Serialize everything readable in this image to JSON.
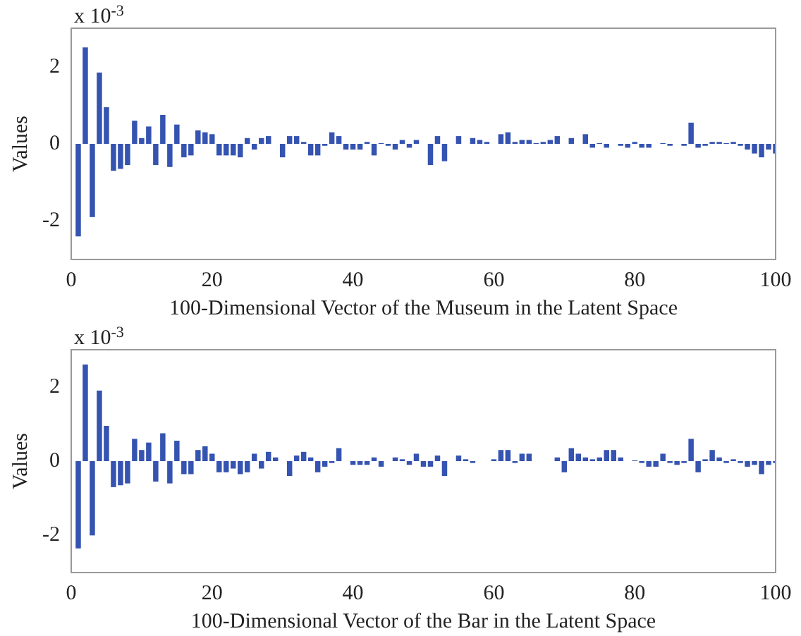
{
  "chart_data": [
    {
      "type": "bar",
      "xlabel": "100-Dimensional Vector of the Museum in the Latent Space",
      "ylabel": "Values",
      "annotations": [
        "x 10$^{-3}$"
      ],
      "color": "#3553b0",
      "xlim": [
        0,
        100
      ],
      "xticks": [
        0,
        20,
        40,
        60,
        80,
        100
      ],
      "ylim": [
        -3,
        3
      ],
      "yticks": [
        -2,
        0,
        2
      ],
      "x": [
        1,
        2,
        3,
        4,
        5,
        6,
        7,
        8,
        9,
        10,
        11,
        12,
        13,
        14,
        15,
        16,
        17,
        18,
        19,
        20,
        21,
        22,
        23,
        24,
        25,
        26,
        27,
        28,
        29,
        30,
        31,
        32,
        33,
        34,
        35,
        36,
        37,
        38,
        39,
        40,
        41,
        42,
        43,
        44,
        45,
        46,
        47,
        48,
        49,
        50,
        51,
        52,
        53,
        54,
        55,
        56,
        57,
        58,
        59,
        60,
        61,
        62,
        63,
        64,
        65,
        66,
        67,
        68,
        69,
        70,
        71,
        72,
        73,
        74,
        75,
        76,
        77,
        78,
        79,
        80,
        81,
        82,
        83,
        84,
        85,
        86,
        87,
        88,
        89,
        90,
        91,
        92,
        93,
        94,
        95,
        96,
        97,
        98,
        99,
        100
      ],
      "values": [
        -2.4,
        2.5,
        -1.9,
        1.85,
        0.95,
        -0.7,
        -0.65,
        -0.55,
        0.6,
        0.15,
        0.45,
        -0.55,
        0.75,
        -0.6,
        0.5,
        -0.35,
        -0.3,
        0.35,
        0.3,
        0.25,
        -0.3,
        -0.3,
        -0.3,
        -0.35,
        0.15,
        -0.15,
        0.15,
        0.2,
        0,
        -0.35,
        0.2,
        0.2,
        0.05,
        -0.3,
        -0.3,
        -0.05,
        0.3,
        0.2,
        -0.15,
        -0.15,
        -0.15,
        0.05,
        -0.3,
        0.02,
        -0.05,
        -0.15,
        0.1,
        -0.1,
        0.1,
        0,
        -0.55,
        0.2,
        -0.45,
        0,
        0.2,
        0,
        0.15,
        0.1,
        0.05,
        0,
        0.25,
        0.3,
        0.05,
        0.1,
        0.1,
        0.02,
        0.05,
        0.1,
        0.2,
        0,
        0.15,
        0,
        0.25,
        -0.1,
        0.02,
        -0.1,
        0,
        -0.05,
        -0.1,
        0.05,
        -0.1,
        -0.1,
        0,
        0.02,
        -0.05,
        0,
        -0.05,
        0.55,
        -0.1,
        -0.05,
        0.05,
        0.05,
        0.02,
        0.05,
        -0.05,
        -0.15,
        -0.25,
        -0.35,
        -0.15,
        -0.25
      ]
    },
    {
      "type": "bar",
      "xlabel": "100-Dimensional Vector of the Bar in the Latent Space",
      "ylabel": "Values",
      "annotations": [
        "x 10$^{-3}$"
      ],
      "color": "#3553b0",
      "xlim": [
        0,
        100
      ],
      "xticks": [
        0,
        20,
        40,
        60,
        80,
        100
      ],
      "ylim": [
        -3,
        3
      ],
      "yticks": [
        -2,
        0,
        2
      ],
      "x": [
        1,
        2,
        3,
        4,
        5,
        6,
        7,
        8,
        9,
        10,
        11,
        12,
        13,
        14,
        15,
        16,
        17,
        18,
        19,
        20,
        21,
        22,
        23,
        24,
        25,
        26,
        27,
        28,
        29,
        30,
        31,
        32,
        33,
        34,
        35,
        36,
        37,
        38,
        39,
        40,
        41,
        42,
        43,
        44,
        45,
        46,
        47,
        48,
        49,
        50,
        51,
        52,
        53,
        54,
        55,
        56,
        57,
        58,
        59,
        60,
        61,
        62,
        63,
        64,
        65,
        66,
        67,
        68,
        69,
        70,
        71,
        72,
        73,
        74,
        75,
        76,
        77,
        78,
        79,
        80,
        81,
        82,
        83,
        84,
        85,
        86,
        87,
        88,
        89,
        90,
        91,
        92,
        93,
        94,
        95,
        96,
        97,
        98,
        99,
        100
      ],
      "values": [
        -2.35,
        2.6,
        -2.0,
        1.9,
        0.95,
        -0.7,
        -0.65,
        -0.6,
        0.6,
        0.3,
        0.5,
        -0.55,
        0.75,
        -0.6,
        0.55,
        -0.35,
        -0.35,
        0.3,
        0.4,
        0.2,
        -0.3,
        -0.3,
        -0.2,
        -0.35,
        -0.3,
        0.2,
        -0.2,
        0.25,
        0.1,
        0,
        -0.4,
        0.15,
        0.25,
        0.1,
        -0.3,
        -0.15,
        -0.05,
        0.35,
        0,
        -0.1,
        -0.1,
        -0.1,
        0.1,
        -0.15,
        0,
        0.1,
        0.05,
        -0.1,
        0.2,
        -0.15,
        -0.15,
        0.15,
        -0.4,
        0,
        0.15,
        0.05,
        -0.05,
        0,
        0,
        0.05,
        0.3,
        0.3,
        -0.05,
        0.2,
        0.2,
        0,
        0,
        0,
        0.1,
        -0.3,
        0.35,
        0.2,
        0.1,
        0.05,
        0.1,
        0.3,
        0.3,
        0.1,
        0,
        0.02,
        -0.05,
        -0.15,
        -0.15,
        0.2,
        -0.05,
        -0.1,
        -0.05,
        0.6,
        -0.3,
        0.05,
        0.3,
        0.1,
        -0.05,
        0.05,
        -0.05,
        -0.15,
        -0.1,
        -0.35,
        -0.1,
        -0.05
      ]
    }
  ]
}
